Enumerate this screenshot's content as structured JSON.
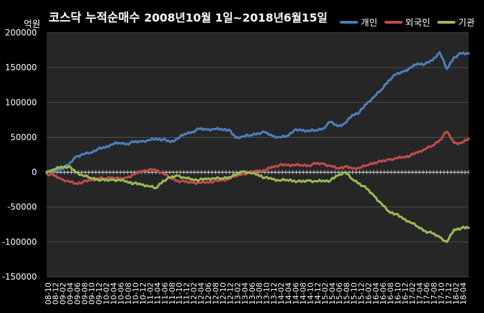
{
  "chart_data": {
    "type": "line",
    "title": "코스닥 누적순매수",
    "subtitle": "2008년10월 1일~2018년6월15일",
    "unit_label": "억원",
    "ylim": [
      -150000,
      200000
    ],
    "yticks": [
      200000,
      150000,
      100000,
      50000,
      0,
      -50000,
      -100000,
      -150000
    ],
    "background": "#262626",
    "grid": true,
    "legend_position": "top-right",
    "x_tick_labels": [
      "08-10",
      "08-12",
      "09-02",
      "09-04",
      "09-06",
      "09-08",
      "09-10",
      "09-12",
      "10-02",
      "10-04",
      "10-06",
      "10-08",
      "10-10",
      "10-12",
      "11-02",
      "11-04",
      "11-06",
      "11-08",
      "11-10",
      "11-12",
      "12-02",
      "12-04",
      "12-06",
      "12-08",
      "12-10",
      "12-12",
      "13-02",
      "13-04",
      "13-06",
      "13-08",
      "13-10",
      "13-12",
      "14-02",
      "14-04",
      "14-06",
      "14-08",
      "14-10",
      "14-12",
      "15-02",
      "15-04",
      "15-06",
      "15-08",
      "15-10",
      "15-12",
      "16-02",
      "16-04",
      "16-06",
      "16-08",
      "16-10",
      "16-12",
      "17-02",
      "17-04",
      "17-06",
      "17-08",
      "17-10",
      "17-12",
      "18-02",
      "18-04"
    ],
    "x": [
      "08-10",
      "08-12",
      "09-02",
      "09-04",
      "09-06",
      "09-08",
      "09-10",
      "09-12",
      "10-02",
      "10-04",
      "10-06",
      "10-08",
      "10-10",
      "10-12",
      "11-02",
      "11-04",
      "11-06",
      "11-08",
      "11-10",
      "11-12",
      "12-02",
      "12-04",
      "12-06",
      "12-08",
      "12-10",
      "12-12",
      "13-02",
      "13-04",
      "13-06",
      "13-08",
      "13-10",
      "13-12",
      "14-02",
      "14-04",
      "14-06",
      "14-08",
      "14-10",
      "14-12",
      "15-02",
      "15-04",
      "15-06",
      "15-08",
      "15-10",
      "15-12",
      "16-02",
      "16-04",
      "16-06",
      "16-08",
      "16-10",
      "16-12",
      "17-02",
      "17-04",
      "17-06",
      "17-08",
      "17-10",
      "17-12",
      "18-02",
      "18-04",
      "18-06"
    ],
    "series": [
      {
        "name": "개인",
        "color": "#4a7ebb",
        "values": [
          0,
          2000,
          5000,
          10000,
          22000,
          26000,
          28000,
          33000,
          35000,
          40000,
          42000,
          41000,
          43000,
          44000,
          46000,
          48000,
          47000,
          43000,
          48000,
          55000,
          58000,
          62000,
          61000,
          62000,
          62000,
          61000,
          49000,
          51000,
          53000,
          56000,
          57000,
          52000,
          50000,
          52000,
          60000,
          60000,
          59000,
          60000,
          63000,
          72000,
          66000,
          70000,
          82000,
          86000,
          98000,
          108000,
          118000,
          132000,
          140000,
          144000,
          150000,
          156000,
          155000,
          160000,
          172000,
          148000,
          165000,
          170000,
          170000
        ]
      },
      {
        "name": "외국인",
        "color": "#be4b48",
        "values": [
          -2000,
          -5000,
          -10000,
          -13000,
          -16000,
          -14000,
          -12000,
          -9000,
          -9000,
          -7000,
          -10000,
          -8000,
          -3000,
          2000,
          3000,
          3000,
          -2000,
          -8000,
          -12000,
          -14000,
          -15000,
          -15000,
          -14000,
          -13000,
          -12000,
          -10000,
          -5000,
          -2000,
          -1000,
          2000,
          3000,
          8000,
          10000,
          10000,
          10000,
          10000,
          10000,
          12000,
          12000,
          9000,
          6000,
          8000,
          5000,
          6000,
          10000,
          14000,
          15000,
          18000,
          20000,
          22000,
          24000,
          28000,
          33000,
          38000,
          46000,
          58000,
          42000,
          42000,
          48000
        ]
      },
      {
        "name": "기관",
        "color": "#98b954",
        "values": [
          0,
          4000,
          8000,
          8000,
          0,
          -5000,
          -8000,
          -10000,
          -12000,
          -11000,
          -11000,
          -13000,
          -16000,
          -18000,
          -20000,
          -23000,
          -12000,
          -8000,
          -5000,
          -8000,
          -10000,
          -11000,
          -10000,
          -9000,
          -9000,
          -7000,
          -4000,
          1000,
          -1000,
          -3000,
          -8000,
          -10000,
          -12000,
          -11000,
          -12000,
          -14000,
          -12000,
          -13000,
          -12000,
          -12000,
          -5000,
          0,
          -10000,
          -16000,
          -24000,
          -34000,
          -45000,
          -56000,
          -60000,
          -67000,
          -72000,
          -78000,
          -84000,
          -88000,
          -93000,
          -100000,
          -82000,
          -80000,
          -80000
        ]
      }
    ]
  }
}
